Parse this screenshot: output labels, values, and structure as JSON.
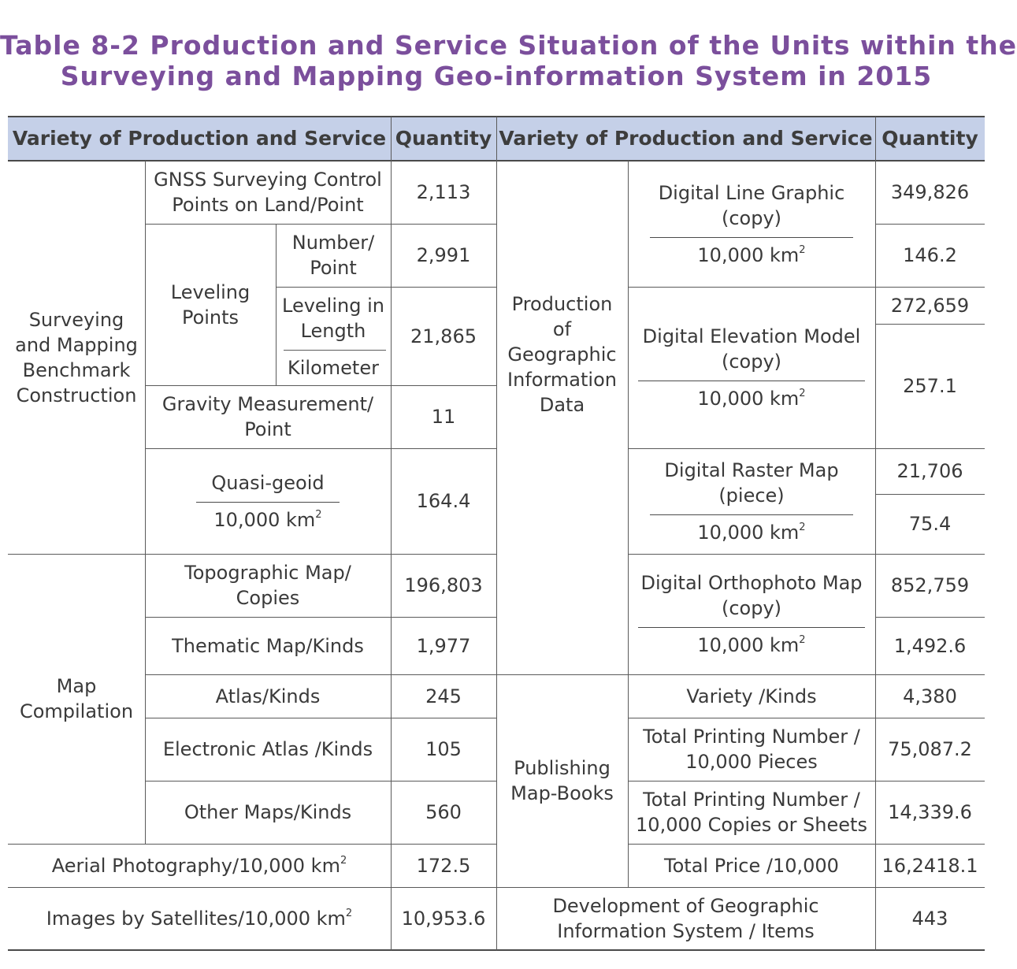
{
  "title": {
    "line1": "Table 8-2 Production and Service Situation of the Units within the",
    "line2": "Surveying and Mapping Geo-information System in 2015"
  },
  "header": {
    "variety_left": "Variety of Production and Service",
    "quantity_left": "Quantity",
    "variety_right": "Variety of Production and Service",
    "quantity_right": "Quantity"
  },
  "left": {
    "cat_benchmark": "Surveying\nand Mapping\nBenchmark\nConstruction",
    "gnss": "GNSS Surveying Control\nPoints on Land/Point",
    "gnss_q": "2,113",
    "leveling_points": "Leveling\nPoints",
    "lev_number": "Number/\nPoint",
    "lev_number_q": "2,991",
    "lev_length_top": "Leveling in\nLength",
    "lev_length_unit": "Kilometer",
    "lev_length_q": "21,865",
    "gravity": "Gravity Measurement/\nPoint",
    "gravity_q": "11",
    "quasi_top": "Quasi-geoid",
    "quasi_unit": "10,000 km",
    "quasi_q": "164.4",
    "cat_map": "Map\nCompilation",
    "topo": "Topographic Map/\nCopies",
    "topo_q": "196,803",
    "thematic": "Thematic Map/Kinds",
    "thematic_q": "1,977",
    "atlas": "Atlas/Kinds",
    "atlas_q": "245",
    "eatlas": "Electronic Atlas /Kinds",
    "eatlas_q": "105",
    "other": "Other Maps/Kinds",
    "other_q": "560",
    "aerial": "Aerial Photography/10,000 km",
    "aerial_q": "172.5",
    "satellite": "Images by Satellites/10,000 km",
    "satellite_q": "10,953.6",
    "sup2": "2"
  },
  "right": {
    "cat_geodata": "Production\nof\nGeographic\nInformation\nData",
    "dlg_top": "Digital Line Graphic\n(copy)",
    "dlg_unit": "10,000 km",
    "dlg_q1": "349,826",
    "dlg_q2": "146.2",
    "dem_top": "Digital Elevation Model\n(copy)",
    "dem_unit": "10,000 km",
    "dem_q1": "272,659",
    "dem_q2": "257.1",
    "drm_top": "Digital Raster Map\n(piece)",
    "drm_unit": "10,000 km",
    "drm_q1": "21,706",
    "drm_q2": "75.4",
    "dom_top": "Digital Orthophoto Map\n(copy)",
    "dom_unit": "10,000 km",
    "dom_q1": "852,759",
    "dom_q2": "1,492.6",
    "cat_publishing": "Publishing\nMap-Books",
    "variety": "Variety /Kinds",
    "variety_q": "4,380",
    "tpn_pieces": "Total Printing Number /\n10,000 Pieces",
    "tpn_pieces_q": "75,087.2",
    "tpn_copies": "Total Printing Number /\n10,000 Copies or Sheets",
    "tpn_copies_q": "14,339.6",
    "total_price": "Total Price /10,000",
    "total_price_q": "16,2418.1",
    "gis_dev": "Development of Geographic\nInformation System / Items",
    "gis_dev_q": "443"
  }
}
